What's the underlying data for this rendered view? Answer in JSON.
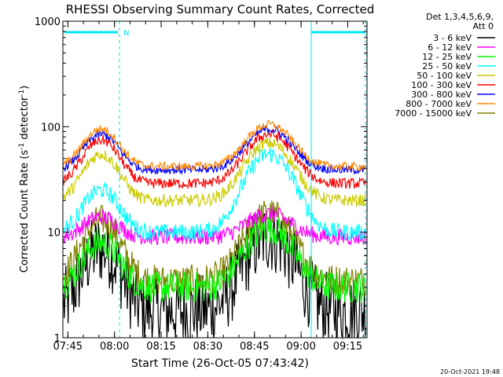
{
  "chart_data": {
    "type": "line",
    "title": "RHESSI Observing Summary Count Rates, Corrected",
    "xlabel": "Start Time (26-Oct-05 07:43:42)",
    "ylabel_main": "Corrected Count Rate (s",
    "ylabel_sup1": "-1",
    "ylabel_mid": " detector",
    "ylabel_sup2": "-1",
    "ylabel_end": ")",
    "y_scale": "log",
    "ylim": [
      1,
      1000
    ],
    "xlim_minutes": [
      -0.3,
      97.5
    ],
    "x_ticks": [
      "07:45",
      "08:00",
      "08:15",
      "08:30",
      "08:45",
      "09:00",
      "09:15"
    ],
    "y_ticks": [
      "1",
      "10",
      "100",
      "1000"
    ],
    "legend_header": [
      "Det 1,3,4,5,6,9,",
      "Att 0"
    ],
    "flag_label": "N",
    "timestamp": "20-Oct-2021 19:48",
    "series": [
      {
        "name": "3 - 6 keV",
        "color": "#000000",
        "base": 1.8,
        "peak1": 7,
        "peak2": 9,
        "noise": 0.35
      },
      {
        "name": "6 - 12 keV",
        "color": "#ff00ff",
        "base": 9,
        "peak1": 14,
        "peak2": 15,
        "noise": 0.08
      },
      {
        "name": "12 - 25 keV",
        "color": "#00ff00",
        "base": 3,
        "peak1": 8,
        "peak2": 11,
        "noise": 0.15
      },
      {
        "name": "25 - 50 keV",
        "color": "#00ffff",
        "base": 10,
        "peak1": 25,
        "peak2": 55,
        "noise": 0.08
      },
      {
        "name": "50 - 100 keV",
        "color": "#cccc00",
        "base": 20,
        "peak1": 55,
        "peak2": 70,
        "noise": 0.06
      },
      {
        "name": "100 - 300 keV",
        "color": "#ff0000",
        "base": 29,
        "peak1": 75,
        "peak2": 85,
        "noise": 0.05
      },
      {
        "name": "300 - 800 keV",
        "color": "#0000ff",
        "base": 39,
        "peak1": 85,
        "peak2": 95,
        "noise": 0.04
      },
      {
        "name": "800 - 7000 keV",
        "color": "#ff8800",
        "base": 42,
        "peak1": 95,
        "peak2": 105,
        "noise": 0.04
      },
      {
        "name": "7000 - 15000 keV",
        "color": "#808000",
        "base": 3.5,
        "peak1": 13,
        "peak2": 15,
        "noise": 0.15
      }
    ],
    "colors": {
      "axis": "#000000",
      "background": "#ffffff",
      "flag_bar": "#00e5ee"
    }
  }
}
